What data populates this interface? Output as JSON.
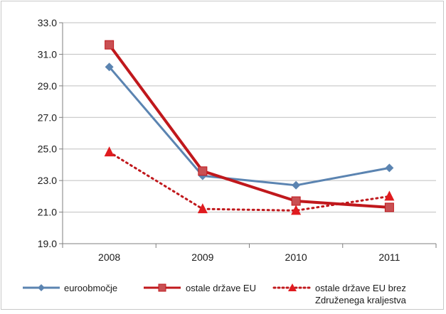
{
  "chart_data": {
    "type": "line",
    "categories": [
      "2008",
      "2009",
      "2010",
      "2011"
    ],
    "y_ticks": [
      "33.0",
      "31.0",
      "29.0",
      "27.0",
      "25.0",
      "23.0",
      "21.0",
      "19.0"
    ],
    "ylim": [
      19,
      33
    ],
    "grid": true,
    "legend_position": "bottom",
    "series": [
      {
        "name": "euroobmočje",
        "values": [
          30.2,
          23.3,
          22.7,
          23.8
        ],
        "color": "#5b84b1",
        "marker": "diamond",
        "dash": "solid"
      },
      {
        "name": "ostale države EU",
        "values": [
          31.6,
          23.6,
          21.7,
          21.3
        ],
        "color": "#c0181c",
        "marker": "square",
        "dash": "solid"
      },
      {
        "name": "ostale države EU brez Združenega kraljestva",
        "values": [
          24.8,
          21.2,
          21.1,
          22.0
        ],
        "color": "#c0181c",
        "marker": "triangle",
        "dash": "dotted"
      }
    ]
  },
  "legend": {
    "items": [
      {
        "line1": "euroobmočje",
        "line2": ""
      },
      {
        "line1": "ostale države EU",
        "line2": ""
      },
      {
        "line1": "ostale države EU brez",
        "line2": "Združenega kraljestva"
      }
    ]
  }
}
